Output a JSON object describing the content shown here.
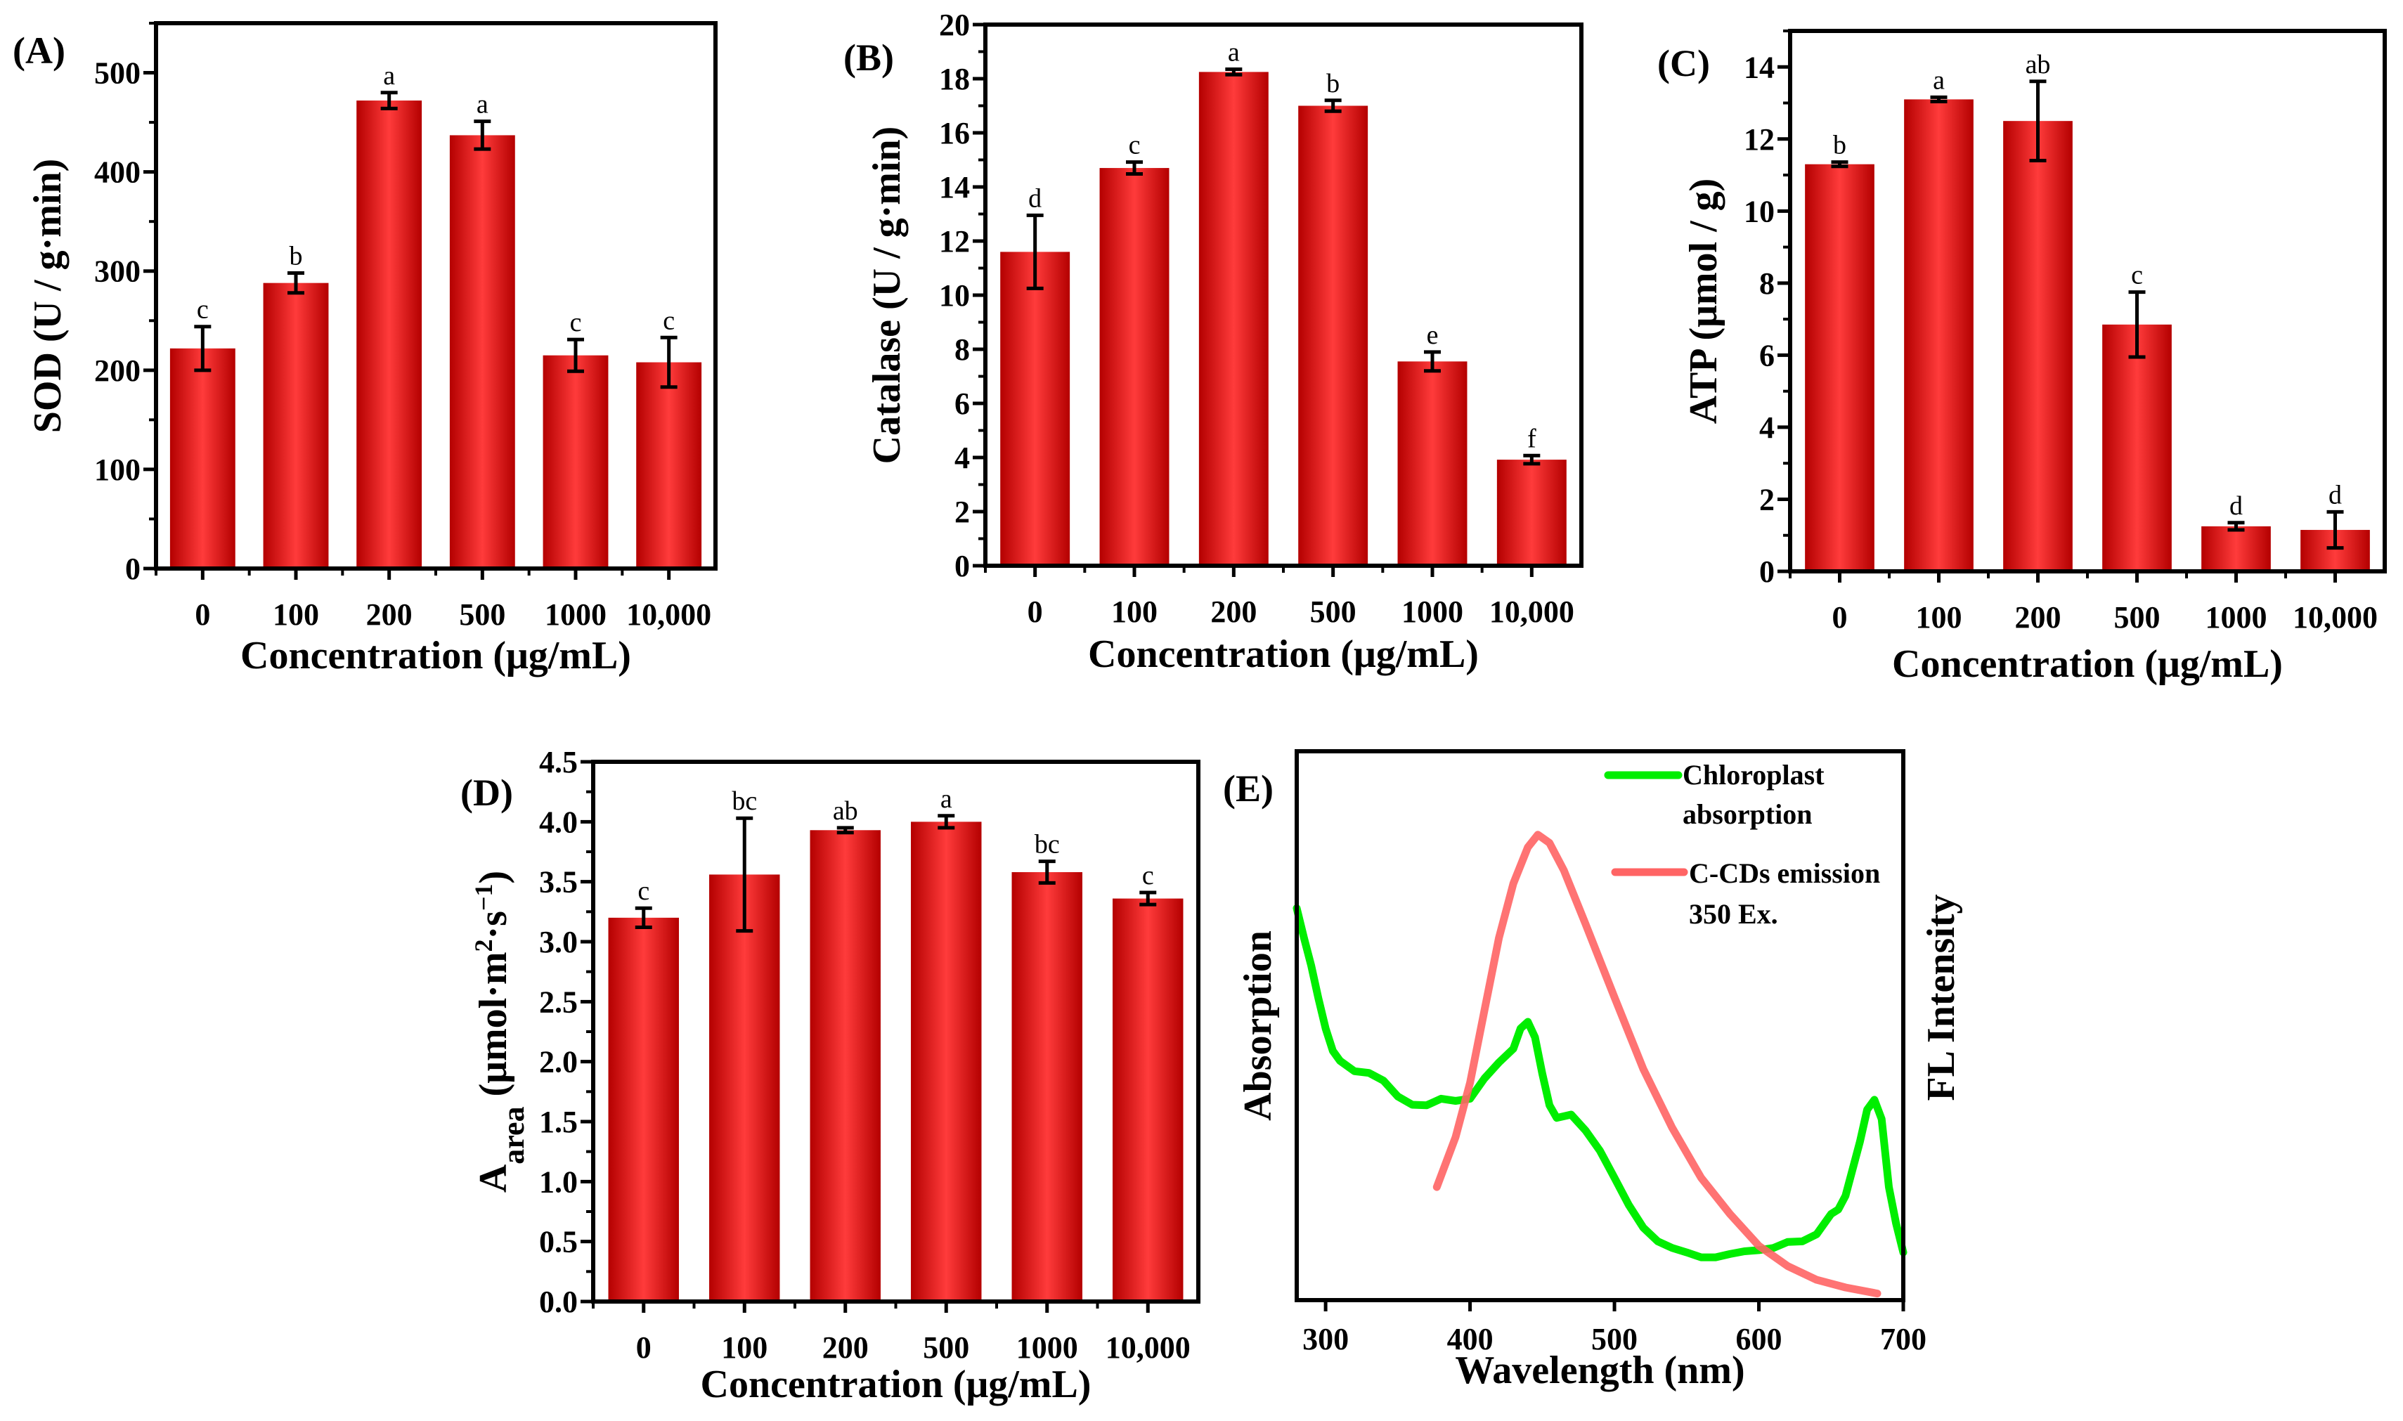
{
  "colors": {
    "bar_dark": "#b40000",
    "bar_light": "#ff3b3b",
    "axis": "#000000",
    "absorption_line": "#00ee00",
    "emission_line": "#ff6464"
  },
  "chart_data": [
    {
      "type": "bar",
      "panel_label": "(A)",
      "categories": [
        "0",
        "100",
        "200",
        "500",
        "1000",
        "10,000"
      ],
      "values": [
        222,
        288,
        472,
        437,
        215,
        208
      ],
      "errors": [
        22,
        10,
        8,
        14,
        16,
        25
      ],
      "significance": [
        "c",
        "b",
        "a",
        "a",
        "c",
        "c"
      ],
      "xlabel": "Concentration (μg/mL)",
      "ylabel_parts": [
        {
          "t": "SOD (U / g·min)",
          "s": ""
        }
      ],
      "ylim": [
        0,
        550
      ],
      "yticks": [
        "0",
        "100",
        "200",
        "300",
        "400",
        "500"
      ],
      "ytick_step": 100,
      "minor_step": 50
    },
    {
      "type": "bar",
      "panel_label": "(B)",
      "categories": [
        "0",
        "100",
        "200",
        "500",
        "1000",
        "10,000"
      ],
      "values": [
        11.6,
        14.7,
        18.25,
        17.0,
        7.55,
        3.92
      ],
      "errors": [
        1.35,
        0.22,
        0.1,
        0.2,
        0.35,
        0.15
      ],
      "significance": [
        "d",
        "c",
        "a",
        "b",
        "e",
        "f"
      ],
      "xlabel": "Concentration (μg/mL)",
      "ylabel_parts": [
        {
          "t": "Catalase (U / g·min)",
          "s": ""
        }
      ],
      "ylim": [
        0,
        20
      ],
      "yticks": [
        "0",
        "2",
        "4",
        "6",
        "8",
        "10",
        "12",
        "14",
        "16",
        "18",
        "20"
      ],
      "ytick_step": 2,
      "minor_step": 1
    },
    {
      "type": "bar",
      "panel_label": "(C)",
      "categories": [
        "0",
        "100",
        "200",
        "500",
        "1000",
        "10,000"
      ],
      "values": [
        11.3,
        13.1,
        12.5,
        6.85,
        1.25,
        1.15
      ],
      "errors": [
        0.06,
        0.06,
        1.1,
        0.9,
        0.1,
        0.5
      ],
      "significance": [
        "b",
        "a",
        "ab",
        "c",
        "d",
        "d"
      ],
      "xlabel": "Concentration (μg/mL)",
      "ylabel_parts": [
        {
          "t": "ATP (μmol / g)",
          "s": ""
        }
      ],
      "ylim": [
        0,
        15
      ],
      "yticks": [
        "0",
        "2",
        "4",
        "6",
        "8",
        "10",
        "12",
        "14"
      ],
      "ytick_step": 2,
      "minor_step": 1
    },
    {
      "type": "bar",
      "panel_label": "(D)",
      "categories": [
        "0",
        "100",
        "200",
        "500",
        "1000",
        "10,000"
      ],
      "values": [
        3.2,
        3.56,
        3.93,
        4.0,
        3.58,
        3.36
      ],
      "errors": [
        0.08,
        0.47,
        0.02,
        0.05,
        0.09,
        0.05
      ],
      "significance": [
        "c",
        "bc",
        "ab",
        "a",
        "bc",
        "c"
      ],
      "xlabel": "Concentration (μg/mL)",
      "ylabel_parts": [
        {
          "t": "A",
          "s": ""
        },
        {
          "t": "area",
          "s": "sub"
        },
        {
          "t": " (μmol·m",
          "s": ""
        },
        {
          "t": "2",
          "s": "sup"
        },
        {
          "t": "·s",
          "s": ""
        },
        {
          "t": "−1",
          "s": "sup"
        },
        {
          "t": ")",
          "s": ""
        }
      ],
      "ylim": [
        0,
        4.5
      ],
      "yticks": [
        "0.0",
        "0.5",
        "1.0",
        "1.5",
        "2.0",
        "2.5",
        "3.0",
        "3.5",
        "4.0",
        "4.5"
      ],
      "ytick_step": 0.5,
      "minor_step": 0.25
    },
    {
      "type": "line",
      "panel_label": "(E)",
      "xlabel": "Wavelength (nm)",
      "ylabel_left": "Absorption",
      "ylabel_right": "FL Intensity",
      "xlim": [
        280,
        700
      ],
      "xticks": [
        "300",
        "400",
        "500",
        "600",
        "700"
      ],
      "ylim": [
        0,
        1
      ],
      "legend_position": "top-right",
      "series": [
        {
          "name_lines": [
            "Chloroplast",
            "absorption"
          ],
          "color_key": "absorption_line",
          "x": [
            280,
            285,
            290,
            295,
            300,
            305,
            310,
            320,
            330,
            340,
            350,
            360,
            370,
            380,
            390,
            400,
            410,
            420,
            430,
            435,
            440,
            445,
            450,
            455,
            460,
            470,
            480,
            490,
            500,
            510,
            520,
            530,
            540,
            550,
            560,
            570,
            580,
            590,
            600,
            610,
            620,
            630,
            640,
            650,
            655,
            660,
            670,
            675,
            680,
            685,
            690,
            695,
            700
          ],
          "y": [
            0.714,
            0.66,
            0.61,
            0.55,
            0.495,
            0.454,
            0.436,
            0.417,
            0.414,
            0.4,
            0.371,
            0.356,
            0.355,
            0.367,
            0.363,
            0.367,
            0.404,
            0.433,
            0.458,
            0.495,
            0.507,
            0.479,
            0.413,
            0.355,
            0.332,
            0.338,
            0.309,
            0.272,
            0.223,
            0.173,
            0.132,
            0.107,
            0.095,
            0.087,
            0.078,
            0.078,
            0.084,
            0.089,
            0.091,
            0.095,
            0.106,
            0.107,
            0.12,
            0.157,
            0.165,
            0.19,
            0.289,
            0.347,
            0.365,
            0.33,
            0.206,
            0.14,
            0.087
          ]
        },
        {
          "name_lines": [
            "C-CDs emission",
            "350 Ex."
          ],
          "color_key": "emission_line",
          "x": [
            377,
            390,
            400,
            410,
            420,
            430,
            440,
            447,
            455,
            465,
            480,
            500,
            520,
            540,
            560,
            580,
            600,
            620,
            640,
            660,
            682
          ],
          "y": [
            0.206,
            0.297,
            0.396,
            0.528,
            0.66,
            0.759,
            0.825,
            0.848,
            0.833,
            0.783,
            0.685,
            0.552,
            0.421,
            0.314,
            0.223,
            0.157,
            0.099,
            0.062,
            0.037,
            0.023,
            0.012
          ]
        }
      ]
    }
  ]
}
